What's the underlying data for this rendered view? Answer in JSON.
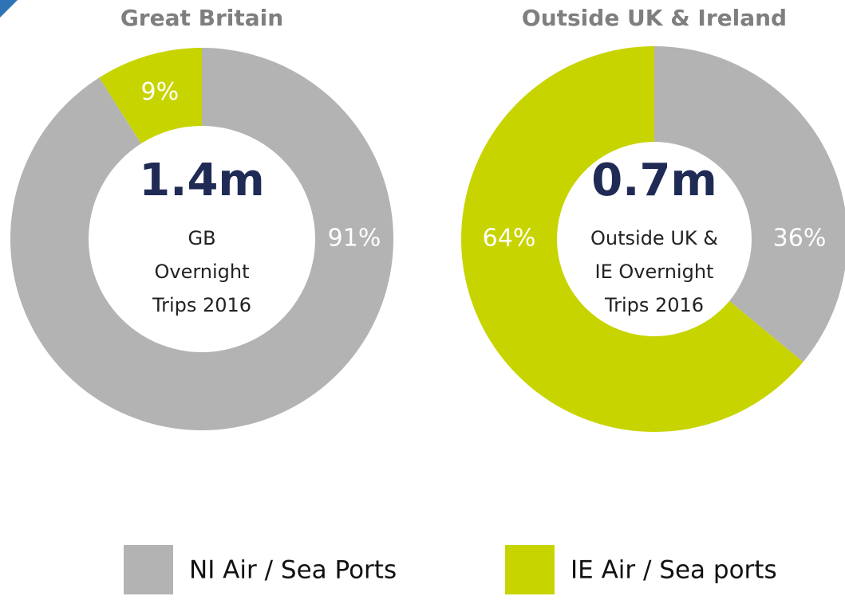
{
  "chart_data": [
    {
      "type": "pie",
      "title": "Great Britain",
      "values": [
        91,
        9
      ],
      "value_labels": [
        "91%",
        "9%"
      ],
      "colors": [
        "#b3b3b3",
        "#c8d400"
      ],
      "center_label": "1.4m",
      "center_text": [
        "GB",
        "Overnight",
        "Trips 2016"
      ]
    },
    {
      "type": "pie",
      "title": "Outside UK & Ireland",
      "values": [
        36,
        64
      ],
      "value_labels": [
        "36%",
        "64%"
      ],
      "colors": [
        "#b3b3b3",
        "#c8d400"
      ],
      "center_label": "0.7m",
      "center_text": [
        "Outside UK &",
        "IE Overnight",
        "Trips 2016"
      ]
    }
  ],
  "legend": {
    "labels": [
      "NI Air / Sea Ports",
      "IE Air / Sea ports"
    ],
    "colors": [
      "#b3b3b3",
      "#c8d400"
    ]
  }
}
